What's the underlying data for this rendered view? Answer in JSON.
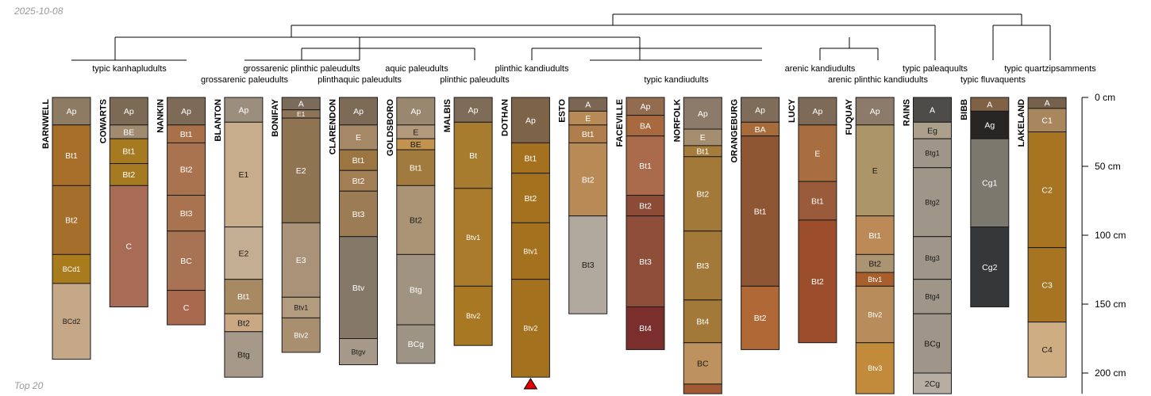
{
  "header": {
    "date": "2025-10-08"
  },
  "footer": {
    "caption": "Top 20"
  },
  "chart_data": {
    "type": "soil-profile-sketch",
    "depth_axis": {
      "unit": "cm",
      "range": [
        0,
        215
      ],
      "ticks": [
        "0 cm",
        "50 cm",
        "100 cm",
        "150 cm",
        "200 cm"
      ],
      "tick_values": [
        0,
        50,
        100,
        150,
        200
      ]
    },
    "taxa_labels": [
      "typic kanhapludults",
      "grossarenic plinthic paleudults",
      "grossarenic paleudults",
      "plinthaquic paleudults",
      "aquic paleudults",
      "plinthic paleudults",
      "plinthic kandiudults",
      "typic kandiudults",
      "arenic kandiudults",
      "arenic plinthic kandiudults",
      "typic paleaquults",
      "typic fluvaquents",
      "typic quartzipsamments"
    ],
    "truncation_marker": {
      "profile": "DOTHAN",
      "symbol": "triangle"
    },
    "profiles": [
      {
        "name": "BARNWELL",
        "horizons": [
          {
            "name": "Ap",
            "top": 0,
            "bottom": 20,
            "color": "#8e7b63"
          },
          {
            "name": "Bt1",
            "top": 20,
            "bottom": 64,
            "color": "#a76f2a"
          },
          {
            "name": "Bt2",
            "top": 64,
            "bottom": 114,
            "color": "#a56e2a"
          },
          {
            "name": "BCd1",
            "top": 114,
            "bottom": 135,
            "color": "#a87c1c"
          },
          {
            "name": "BCd2",
            "top": 135,
            "bottom": 190,
            "color": "#c4a887"
          }
        ]
      },
      {
        "name": "COWARTS",
        "horizons": [
          {
            "name": "Ap",
            "top": 0,
            "bottom": 20,
            "color": "#7d6a56"
          },
          {
            "name": "BE",
            "top": 20,
            "bottom": 30,
            "color": "#a08a70"
          },
          {
            "name": "Bt1",
            "top": 30,
            "bottom": 48,
            "color": "#a67a20"
          },
          {
            "name": "Bt2",
            "top": 48,
            "bottom": 64,
            "color": "#a67a20"
          },
          {
            "name": "C",
            "top": 64,
            "bottom": 152,
            "color": "#a86b55"
          }
        ]
      },
      {
        "name": "NANKIN",
        "horizons": [
          {
            "name": "Ap",
            "top": 0,
            "bottom": 20,
            "color": "#7d6b58"
          },
          {
            "name": "Bt1",
            "top": 20,
            "bottom": 33,
            "color": "#a8714a"
          },
          {
            "name": "Bt2",
            "top": 33,
            "bottom": 71,
            "color": "#aa7350"
          },
          {
            "name": "Bt3",
            "top": 71,
            "bottom": 97,
            "color": "#aa7350"
          },
          {
            "name": "BC",
            "top": 97,
            "bottom": 140,
            "color": "#a87254"
          },
          {
            "name": "C",
            "top": 140,
            "bottom": 165,
            "color": "#a8694e"
          }
        ]
      },
      {
        "name": "BLANTON",
        "horizons": [
          {
            "name": "Ap",
            "top": 0,
            "bottom": 18,
            "color": "#9c8e7c"
          },
          {
            "name": "E1",
            "top": 18,
            "bottom": 94,
            "color": "#c7ad8b"
          },
          {
            "name": "E2",
            "top": 94,
            "bottom": 132,
            "color": "#c4ae93"
          },
          {
            "name": "Bt1",
            "top": 132,
            "bottom": 157,
            "color": "#a88a62"
          },
          {
            "name": "Bt2",
            "top": 157,
            "bottom": 170,
            "color": "#c9a883"
          },
          {
            "name": "Btg",
            "top": 170,
            "bottom": 203,
            "color": "#a7998a"
          }
        ]
      },
      {
        "name": "BONIFAY",
        "horizons": [
          {
            "name": "A",
            "top": 0,
            "bottom": 9,
            "color": "#7b6b5a"
          },
          {
            "name": "E1",
            "top": 9,
            "bottom": 15,
            "color": "#8e7558"
          },
          {
            "name": "E2",
            "top": 15,
            "bottom": 91,
            "color": "#8e7450"
          },
          {
            "name": "E3",
            "top": 91,
            "bottom": 145,
            "color": "#a99278"
          },
          {
            "name": "Btv1",
            "top": 145,
            "bottom": 160,
            "color": "#b39c7e"
          },
          {
            "name": "Btv2",
            "top": 160,
            "bottom": 185,
            "color": "#a88f6f"
          }
        ]
      },
      {
        "name": "CLARENDON",
        "horizons": [
          {
            "name": "Ap",
            "top": 0,
            "bottom": 20,
            "color": "#7d6b58"
          },
          {
            "name": "E",
            "top": 20,
            "bottom": 38,
            "color": "#a58967"
          },
          {
            "name": "Bt1",
            "top": 38,
            "bottom": 53,
            "color": "#9c7642"
          },
          {
            "name": "Bt2",
            "top": 53,
            "bottom": 68,
            "color": "#a27e55"
          },
          {
            "name": "Bt3",
            "top": 68,
            "bottom": 101,
            "color": "#9c7c55"
          },
          {
            "name": "Btv",
            "top": 101,
            "bottom": 175,
            "color": "#857868"
          },
          {
            "name": "Btgv",
            "top": 175,
            "bottom": 194,
            "color": "#a7998a"
          }
        ]
      },
      {
        "name": "GOLDSBORO",
        "horizons": [
          {
            "name": "Ap",
            "top": 0,
            "bottom": 20,
            "color": "#9a8770"
          },
          {
            "name": "E",
            "top": 20,
            "bottom": 30,
            "color": "#b39a7c"
          },
          {
            "name": "BE",
            "top": 30,
            "bottom": 38,
            "color": "#c2934e"
          },
          {
            "name": "Bt1",
            "top": 38,
            "bottom": 64,
            "color": "#a17a3d"
          },
          {
            "name": "Bt2",
            "top": 64,
            "bottom": 114,
            "color": "#ab9475"
          },
          {
            "name": "Btg",
            "top": 114,
            "bottom": 165,
            "color": "#a09382"
          },
          {
            "name": "BCg",
            "top": 165,
            "bottom": 193,
            "color": "#9e9486"
          }
        ]
      },
      {
        "name": "MALBIS",
        "horizons": [
          {
            "name": "Ap",
            "top": 0,
            "bottom": 18,
            "color": "#7e6b58"
          },
          {
            "name": "Bt",
            "top": 18,
            "bottom": 66,
            "color": "#a77c2f"
          },
          {
            "name": "Btv1",
            "top": 66,
            "bottom": 137,
            "color": "#a97b2b"
          },
          {
            "name": "Btv2",
            "top": 137,
            "bottom": 180,
            "color": "#a87922"
          }
        ]
      },
      {
        "name": "DOTHAN",
        "horizons": [
          {
            "name": "Ap",
            "top": 0,
            "bottom": 33,
            "color": "#7d6449"
          },
          {
            "name": "Bt1",
            "top": 33,
            "bottom": 55,
            "color": "#a4721f"
          },
          {
            "name": "Bt2",
            "top": 55,
            "bottom": 91,
            "color": "#a4721f"
          },
          {
            "name": "Btv1",
            "top": 91,
            "bottom": 132,
            "color": "#a4721f"
          },
          {
            "name": "Btv2",
            "top": 132,
            "bottom": 203,
            "color": "#a4721f"
          }
        ]
      },
      {
        "name": "ESTO",
        "horizons": [
          {
            "name": "A",
            "top": 0,
            "bottom": 10,
            "color": "#7b6654"
          },
          {
            "name": "E",
            "top": 10,
            "bottom": 20,
            "color": "#b88a55"
          },
          {
            "name": "Bt1",
            "top": 20,
            "bottom": 33,
            "color": "#b07d4c"
          },
          {
            "name": "Bt2",
            "top": 33,
            "bottom": 86,
            "color": "#b88a55"
          },
          {
            "name": "Bt3",
            "top": 86,
            "bottom": 157,
            "color": "#b2a99e"
          }
        ]
      },
      {
        "name": "FACEVILLE",
        "horizons": [
          {
            "name": "Ap",
            "top": 0,
            "bottom": 13,
            "color": "#936c4f"
          },
          {
            "name": "BA",
            "top": 13,
            "bottom": 28,
            "color": "#a9693f"
          },
          {
            "name": "Bt1",
            "top": 28,
            "bottom": 71,
            "color": "#a96b4c"
          },
          {
            "name": "Bt2",
            "top": 71,
            "bottom": 86,
            "color": "#8b4b37"
          },
          {
            "name": "Bt3",
            "top": 86,
            "bottom": 152,
            "color": "#8e4e3a"
          },
          {
            "name": "Bt4",
            "top": 152,
            "bottom": 183,
            "color": "#7a2f2c"
          }
        ]
      },
      {
        "name": "NORFOLK",
        "horizons": [
          {
            "name": "Ap",
            "top": 0,
            "bottom": 23,
            "color": "#8c7a6a"
          },
          {
            "name": "E",
            "top": 23,
            "bottom": 35,
            "color": "#a58e70"
          },
          {
            "name": "Bt1",
            "top": 35,
            "bottom": 43,
            "color": "#a67c3a"
          },
          {
            "name": "Bt2",
            "top": 43,
            "bottom": 97,
            "color": "#a3793a"
          },
          {
            "name": "Bt3",
            "top": 97,
            "bottom": 147,
            "color": "#a3793a"
          },
          {
            "name": "Bt4",
            "top": 147,
            "bottom": 178,
            "color": "#a3793a"
          },
          {
            "name": "BC",
            "top": 178,
            "bottom": 208,
            "color": "#bd925e"
          },
          {
            "name": "",
            "top": 208,
            "bottom": 215,
            "color": "#a35a33"
          }
        ]
      },
      {
        "name": "ORANGEBURG",
        "horizons": [
          {
            "name": "Ap",
            "top": 0,
            "bottom": 18,
            "color": "#7f6c5a"
          },
          {
            "name": "BA",
            "top": 18,
            "bottom": 28,
            "color": "#a86c3a"
          },
          {
            "name": "Bt1",
            "top": 28,
            "bottom": 137,
            "color": "#8e5632"
          },
          {
            "name": "Bt2",
            "top": 137,
            "bottom": 183,
            "color": "#b06836"
          }
        ]
      },
      {
        "name": "LUCY",
        "horizons": [
          {
            "name": "Ap",
            "top": 0,
            "bottom": 20,
            "color": "#7d6b58"
          },
          {
            "name": "E",
            "top": 20,
            "bottom": 61,
            "color": "#a86e3f"
          },
          {
            "name": "Bt1",
            "top": 61,
            "bottom": 89,
            "color": "#9a5b3a"
          },
          {
            "name": "Bt2",
            "top": 89,
            "bottom": 178,
            "color": "#9b4d2c"
          }
        ]
      },
      {
        "name": "FUQUAY",
        "horizons": [
          {
            "name": "Ap",
            "top": 0,
            "bottom": 20,
            "color": "#8c7a6a"
          },
          {
            "name": "E",
            "top": 20,
            "bottom": 86,
            "color": "#ac9669"
          },
          {
            "name": "Bt1",
            "top": 86,
            "bottom": 114,
            "color": "#bb8a57"
          },
          {
            "name": "Bt2",
            "top": 114,
            "bottom": 127,
            "color": "#ab9472"
          },
          {
            "name": "Btv1",
            "top": 127,
            "bottom": 137,
            "color": "#a7602c"
          },
          {
            "name": "Btv2",
            "top": 137,
            "bottom": 178,
            "color": "#b98d5b"
          },
          {
            "name": "Btv3",
            "top": 178,
            "bottom": 215,
            "color": "#c18b3b"
          }
        ]
      },
      {
        "name": "RAINS",
        "horizons": [
          {
            "name": "A",
            "top": 0,
            "bottom": 18,
            "color": "#4e4c49"
          },
          {
            "name": "Eg",
            "top": 18,
            "bottom": 30,
            "color": "#aca08d"
          },
          {
            "name": "Btg1",
            "top": 30,
            "bottom": 51,
            "color": "#9f9588"
          },
          {
            "name": "Btg2",
            "top": 51,
            "bottom": 101,
            "color": "#9f9588"
          },
          {
            "name": "Btg3",
            "top": 101,
            "bottom": 132,
            "color": "#9f9588"
          },
          {
            "name": "Btg4",
            "top": 132,
            "bottom": 157,
            "color": "#9f9588"
          },
          {
            "name": "BCg",
            "top": 157,
            "bottom": 200,
            "color": "#9f9588"
          },
          {
            "name": "2Cg",
            "top": 200,
            "bottom": 215,
            "color": "#b7aea3"
          }
        ]
      },
      {
        "name": "BIBB",
        "horizons": [
          {
            "name": "A",
            "top": 0,
            "bottom": 10,
            "color": "#7f6246"
          },
          {
            "name": "Ag",
            "top": 10,
            "bottom": 30,
            "color": "#282624"
          },
          {
            "name": "Cg1",
            "top": 30,
            "bottom": 94,
            "color": "#7b786e"
          },
          {
            "name": "Cg2",
            "top": 94,
            "bottom": 152,
            "color": "#363739"
          }
        ]
      },
      {
        "name": "LAKELAND",
        "horizons": [
          {
            "name": "A",
            "top": 0,
            "bottom": 8,
            "color": "#76624c"
          },
          {
            "name": "C1",
            "top": 8,
            "bottom": 25,
            "color": "#a8875f"
          },
          {
            "name": "C2",
            "top": 25,
            "bottom": 109,
            "color": "#a77521"
          },
          {
            "name": "C3",
            "top": 109,
            "bottom": 163,
            "color": "#a77521"
          },
          {
            "name": "C4",
            "top": 163,
            "bottom": 203,
            "color": "#cfad83"
          }
        ]
      }
    ]
  }
}
